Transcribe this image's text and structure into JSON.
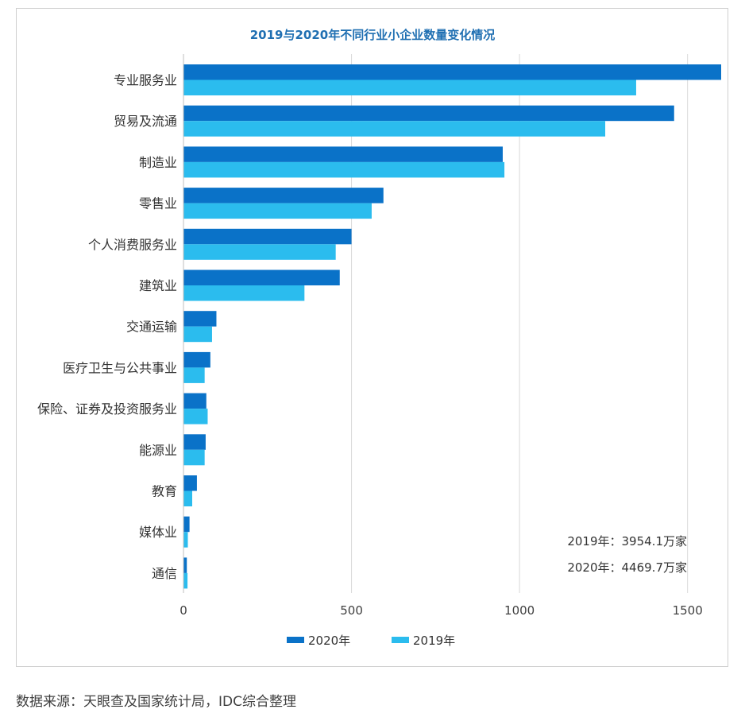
{
  "chart_data": {
    "type": "bar",
    "orientation": "horizontal",
    "title": "2019与2020年不同行业小企业数量变化情况",
    "categories": [
      "专业服务业",
      "贸易及流通",
      "制造业",
      "零售业",
      "个人消费服务业",
      "建筑业",
      "交通运输",
      "医疗卫生与公共事业",
      "保险、证券及投资服务业",
      "能源业",
      "教育",
      "媒体业",
      "通信"
    ],
    "series": [
      {
        "name": "2020年",
        "color": "#0a72c8",
        "values": [
          1600,
          1460,
          950,
          595,
          500,
          465,
          98,
          80,
          68,
          66,
          40,
          18,
          10
        ]
      },
      {
        "name": "2019年",
        "color": "#2bbcee",
        "values": [
          1347,
          1255,
          955,
          560,
          453,
          360,
          85,
          63,
          72,
          63,
          26,
          13,
          12
        ]
      }
    ],
    "xticks": [
      "0",
      "500",
      "1000",
      "1500"
    ],
    "xtick_values": [
      0,
      500,
      1000,
      1500
    ],
    "xlim": [
      0,
      1600
    ],
    "grid": "vertical",
    "legend_position": "bottom",
    "annotations": [
      "2019年：3954.1万家",
      "2020年：4469.7万家"
    ]
  },
  "source": "数据来源：天眼查及国家统计局，IDC综合整理"
}
